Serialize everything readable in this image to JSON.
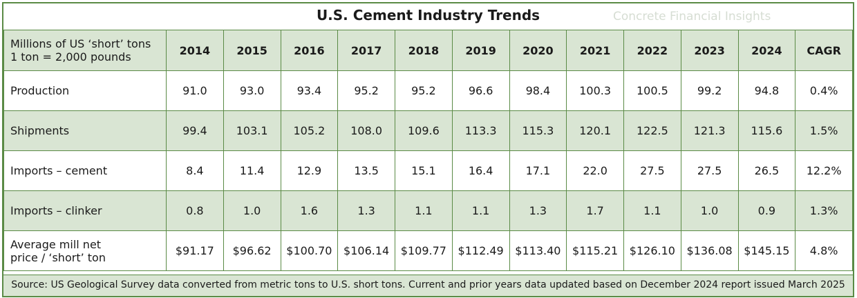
{
  "title": "U.S. Cement Industry Trends",
  "watermark": "Concrete Financial Insights",
  "source": "Source: US Geological Survey data converted from metric tons to U.S. short tons. Current and prior years data updated based on December 2024 report issued March 2025",
  "chart_data": {
    "type": "table",
    "title": "U.S. Cement Industry Trends",
    "header_label_lines": [
      "Millions of US ‘short’ tons",
      "1 ton = 2,000 pounds"
    ],
    "columns": [
      "2014",
      "2015",
      "2016",
      "2017",
      "2018",
      "2019",
      "2020",
      "2021",
      "2022",
      "2023",
      "2024",
      "CAGR"
    ],
    "rows": [
      {
        "label_lines": [
          "Production"
        ],
        "values": [
          "91.0",
          "93.0",
          "93.4",
          "95.2",
          "95.2",
          "96.6",
          "98.4",
          "100.3",
          "100.5",
          "99.2",
          "94.8",
          "0.4%"
        ]
      },
      {
        "label_lines": [
          "Shipments"
        ],
        "values": [
          "99.4",
          "103.1",
          "105.2",
          "108.0",
          "109.6",
          "113.3",
          "115.3",
          "120.1",
          "122.5",
          "121.3",
          "115.6",
          "1.5%"
        ]
      },
      {
        "label_lines": [
          "Imports – cement"
        ],
        "values": [
          "8.4",
          "11.4",
          "12.9",
          "13.5",
          "15.1",
          "16.4",
          "17.1",
          "22.0",
          "27.5",
          "27.5",
          "26.5",
          "12.2%"
        ]
      },
      {
        "label_lines": [
          "Imports – clinker"
        ],
        "values": [
          "0.8",
          "1.0",
          "1.6",
          "1.3",
          "1.1",
          "1.1",
          "1.3",
          "1.7",
          "1.1",
          "1.0",
          "0.9",
          "1.3%"
        ]
      },
      {
        "label_lines": [
          "Average mill net",
          "price / ‘short’ ton"
        ],
        "values": [
          "$91.17",
          "$96.62",
          "$100.70",
          "$106.14",
          "$109.77",
          "$112.49",
          "$113.40",
          "$115.21",
          "$126.10",
          "$136.08",
          "$145.15",
          "4.8%"
        ]
      }
    ]
  },
  "colors": {
    "border": "#5a8a45",
    "band": "#d9e5d3",
    "text": "#1a1a1a"
  }
}
